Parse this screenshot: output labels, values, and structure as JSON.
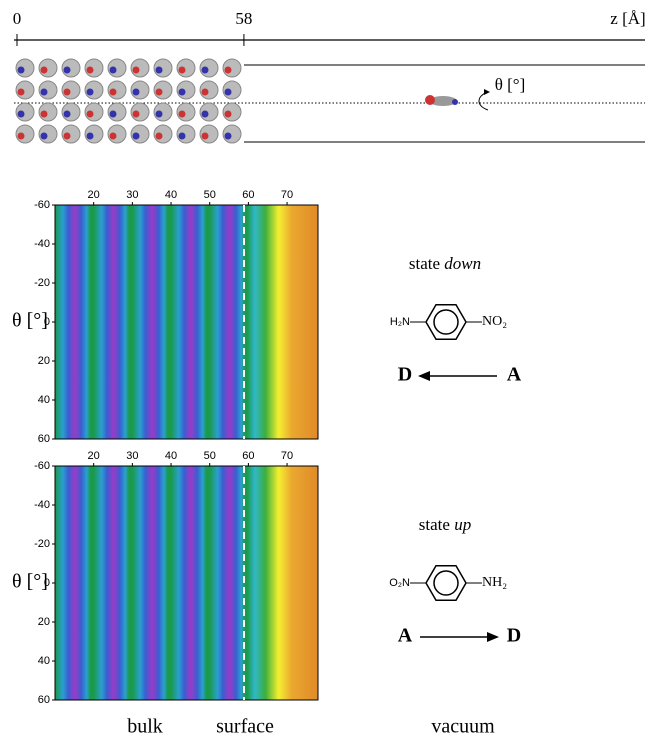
{
  "z_axis": {
    "ticks": [
      0,
      58
    ],
    "zlim": [
      0,
      160
    ],
    "label": "z [Å]"
  },
  "rotation_label": "θ [°]",
  "panels": [
    {
      "xlim": [
        10,
        78
      ],
      "xticks": [
        20,
        30,
        40,
        50,
        60,
        70
      ],
      "ylim": [
        -60,
        60
      ],
      "yticks": [
        -60,
        -40,
        -20,
        0,
        20,
        40,
        60
      ],
      "ylabel": "θ [°]",
      "state": {
        "prefix": "state",
        "name": "down"
      },
      "molecule": {
        "left": "H₂N",
        "right": "NO₂"
      },
      "arrow": {
        "left": "D",
        "right": "A",
        "direction": "left"
      }
    },
    {
      "xlim": [
        10,
        78
      ],
      "xticks": [
        20,
        30,
        40,
        50,
        60,
        70
      ],
      "ylim": [
        -60,
        60
      ],
      "yticks": [
        -60,
        -40,
        -20,
        0,
        20,
        40,
        60
      ],
      "ylabel": "θ [°]",
      "state": {
        "prefix": "state",
        "name": "up"
      },
      "molecule": {
        "left": "O₂N",
        "right": "NH₂"
      },
      "arrow": {
        "left": "A",
        "right": "D",
        "direction": "right"
      }
    }
  ],
  "regions": [
    "bulk",
    "surface",
    "vacuum"
  ]
}
